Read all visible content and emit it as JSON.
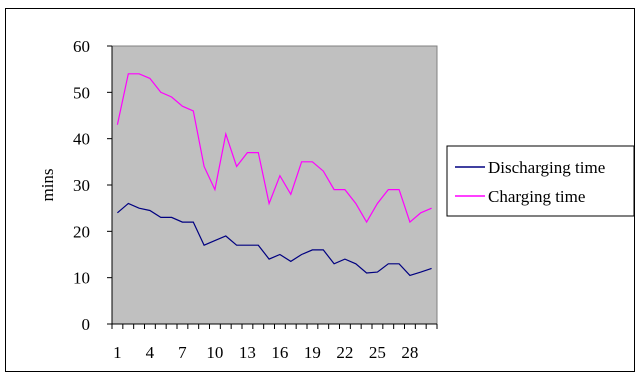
{
  "chart_data": {
    "type": "line",
    "ylabel": "mins",
    "xlabel": "",
    "ylim": [
      0,
      60
    ],
    "yticks": [
      0,
      10,
      20,
      30,
      40,
      50,
      60
    ],
    "xtick_labels": [
      "1",
      "4",
      "7",
      "10",
      "13",
      "16",
      "19",
      "22",
      "25",
      "28"
    ],
    "x": [
      1,
      2,
      3,
      4,
      5,
      6,
      7,
      8,
      9,
      10,
      11,
      12,
      13,
      14,
      15,
      16,
      17,
      18,
      19,
      20,
      21,
      22,
      23,
      24,
      25,
      26,
      27,
      28,
      29,
      30
    ],
    "grid": false,
    "background": "#c0c0c0",
    "legend_position": "right",
    "series": [
      {
        "name": "Discharging time",
        "color": "#000080",
        "values": [
          24,
          26,
          25,
          24.5,
          23,
          23,
          22,
          22,
          17,
          18,
          19,
          17,
          17,
          17,
          14,
          15,
          13.5,
          15,
          16,
          16,
          13,
          14,
          13,
          11,
          11.2,
          13,
          13,
          10.5,
          11.2,
          12
        ]
      },
      {
        "name": "Charging time",
        "color": "#ff00ff",
        "values": [
          43,
          54,
          54,
          53,
          50,
          49,
          47,
          46,
          34,
          29,
          41,
          34,
          37,
          37,
          26,
          32,
          28,
          35,
          35,
          33,
          29,
          29,
          26,
          22,
          26,
          29,
          29,
          22,
          24,
          25
        ]
      }
    ]
  }
}
